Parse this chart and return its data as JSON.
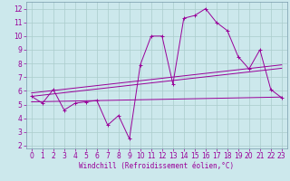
{
  "xlabel": "Windchill (Refroidissement éolien,°C)",
  "bg_color": "#cce8ec",
  "grid_color": "#aacccc",
  "line_color": "#990099",
  "spine_color": "#7799aa",
  "xlim": [
    -0.5,
    23.5
  ],
  "ylim": [
    1.8,
    12.5
  ],
  "xticks": [
    0,
    1,
    2,
    3,
    4,
    5,
    6,
    7,
    8,
    9,
    10,
    11,
    12,
    13,
    14,
    15,
    16,
    17,
    18,
    19,
    20,
    21,
    22,
    23
  ],
  "yticks": [
    2,
    3,
    4,
    5,
    6,
    7,
    8,
    9,
    10,
    11,
    12
  ],
  "main_x": [
    0,
    1,
    2,
    3,
    4,
    5,
    6,
    7,
    8,
    9,
    10,
    11,
    12,
    13,
    14,
    15,
    16,
    17,
    18,
    19,
    20,
    21,
    22,
    23
  ],
  "main_y": [
    5.6,
    5.1,
    6.1,
    4.6,
    5.1,
    5.2,
    5.3,
    3.5,
    4.2,
    2.5,
    7.9,
    10.0,
    10.0,
    6.5,
    11.3,
    11.5,
    12.0,
    11.0,
    10.4,
    8.5,
    7.6,
    9.0,
    6.1,
    5.5
  ],
  "line1_x": [
    0,
    23
  ],
  "line1_y": [
    5.85,
    7.9
  ],
  "line2_x": [
    0,
    23
  ],
  "line2_y": [
    5.6,
    7.65
  ],
  "line3_x": [
    0,
    23
  ],
  "line3_y": [
    5.2,
    5.55
  ],
  "tick_fontsize": 5.5,
  "xlabel_fontsize": 5.5
}
